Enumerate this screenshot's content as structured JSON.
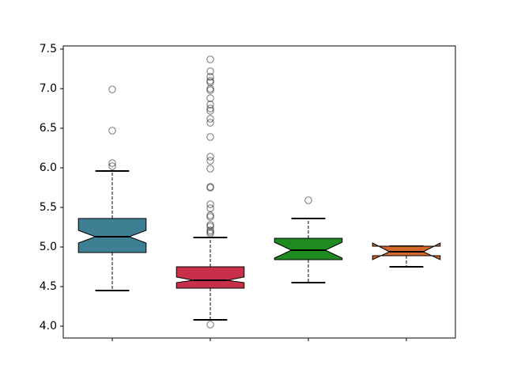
{
  "chart_data": {
    "type": "box",
    "categories": [
      null,
      null,
      null,
      null
    ],
    "ylim": [
      3.85,
      7.54
    ],
    "yticks": [
      {
        "value": 4,
        "label": "4.0"
      },
      4.5,
      {
        "value": 5,
        "label": "5.0"
      },
      5.5,
      {
        "value": 6,
        "label": "6.0"
      },
      6.5,
      {
        "value": 7,
        "label": "7.0"
      },
      7.5
    ],
    "notch": true,
    "boxes": [
      {
        "color": "#3f7f93",
        "whislo": 4.45,
        "q1": 4.93,
        "notch_low": 5.05,
        "med": 5.13,
        "notch_high": 5.21,
        "q3": 5.36,
        "whishi": 5.96,
        "fliers": [
          6.99,
          6.47,
          6.06,
          6.02
        ]
      },
      {
        "color": "#c8304a",
        "whislo": 4.08,
        "q1": 4.48,
        "notch_low": 4.55,
        "med": 4.58,
        "notch_high": 4.62,
        "q3": 4.75,
        "whishi": 5.12,
        "fliers": [
          7.37,
          7.22,
          7.15,
          7.1,
          7.08,
          7.0,
          6.98,
          6.88,
          6.8,
          6.75,
          6.72,
          6.62,
          6.57,
          6.39,
          6.14,
          6.09,
          5.99,
          5.76,
          5.75,
          5.54,
          5.49,
          5.4,
          5.38,
          5.28,
          5.26,
          5.21,
          5.19,
          5.17,
          4.02
        ]
      },
      {
        "color": "#1f8a1f",
        "whislo": 4.55,
        "q1": 4.84,
        "notch_low": 4.86,
        "med": 4.96,
        "notch_high": 5.06,
        "q3": 5.11,
        "whishi": 5.36,
        "fliers": [
          5.59
        ]
      },
      {
        "color": "#d2692a",
        "whislo": 4.75,
        "q1": 4.89,
        "notch_low": 4.84,
        "med": 4.94,
        "notch_high": 5.05,
        "q3": 5.01,
        "whishi": 5.01,
        "fliers": []
      }
    ]
  }
}
